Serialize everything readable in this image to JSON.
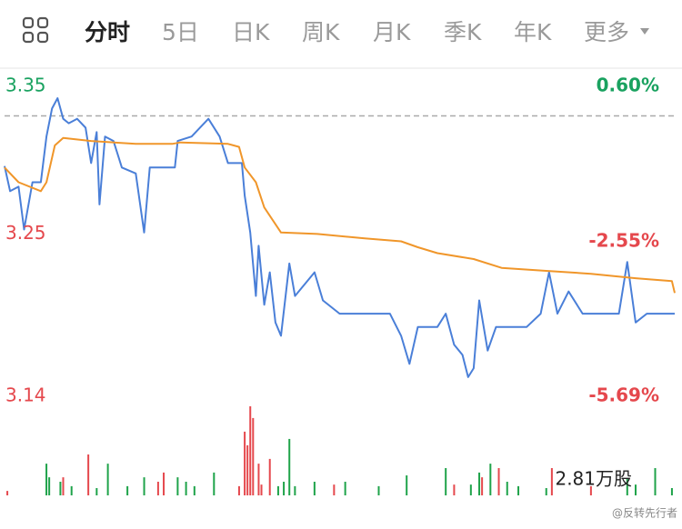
{
  "tabs": [
    "分时",
    "5日",
    "日K",
    "周K",
    "月K",
    "季K",
    "年K",
    "更多"
  ],
  "active_tab": 0,
  "watermark": "@反转先行者",
  "chart_data": [
    {
      "type": "line",
      "xlim": [
        0,
        240
      ],
      "ylim": [
        3.14,
        3.35
      ],
      "yticks": [
        3.14,
        3.25,
        3.35
      ],
      "ytick_colors": [
        "#e5484d",
        "#e5484d",
        "#1aa260"
      ],
      "y2lim": [
        -5.69,
        0.6
      ],
      "y2ticks": [
        {
          "value": -5.69,
          "label": "-5.69%"
        },
        {
          "value": -2.55,
          "label": "-2.55%"
        },
        {
          "value": 0.6,
          "label": "0.60%"
        }
      ],
      "y2tick_colors": [
        "#e5484d",
        "#e5484d",
        "#1aa260"
      ],
      "reference": 3.33,
      "series": [
        {
          "color": "#4a7fd8",
          "x": [
            0,
            2,
            5,
            7,
            10,
            13,
            15,
            17,
            19,
            21,
            23,
            26,
            29,
            31,
            33,
            34,
            36,
            39,
            42,
            47,
            50,
            52,
            57,
            61,
            62,
            67,
            73,
            77,
            80,
            85,
            86,
            88,
            90,
            91,
            93,
            95,
            97,
            99,
            102,
            104,
            111,
            114,
            120,
            127,
            132,
            138,
            142,
            145,
            148,
            155,
            158,
            161,
            164,
            166,
            168,
            170,
            173,
            176,
            181,
            187,
            192,
            195,
            198,
            202,
            207,
            212,
            217,
            220,
            223,
            226,
            230,
            240
          ],
          "values": [
            3.296,
            3.279,
            3.282,
            3.253,
            3.285,
            3.285,
            3.316,
            3.335,
            3.342,
            3.328,
            3.325,
            3.328,
            3.322,
            3.298,
            3.319,
            3.27,
            3.316,
            3.313,
            3.295,
            3.291,
            3.251,
            3.295,
            3.295,
            3.295,
            3.313,
            3.316,
            3.328,
            3.316,
            3.298,
            3.298,
            3.276,
            3.251,
            3.208,
            3.242,
            3.202,
            3.224,
            3.19,
            3.181,
            3.23,
            3.208,
            3.224,
            3.205,
            3.196,
            3.196,
            3.196,
            3.196,
            3.181,
            3.162,
            3.187,
            3.187,
            3.196,
            3.175,
            3.168,
            3.153,
            3.159,
            3.205,
            3.171,
            3.187,
            3.187,
            3.187,
            3.196,
            3.224,
            3.196,
            3.211,
            3.196,
            3.196,
            3.196,
            3.196,
            3.231,
            3.19,
            3.196,
            3.196
          ]
        },
        {
          "color": "#f0962a",
          "x": [
            0,
            5,
            13,
            15,
            18,
            21,
            31,
            47,
            60,
            63,
            80,
            84,
            86,
            90,
            93,
            99,
            112,
            129,
            142,
            148,
            155,
            168,
            178,
            194,
            210,
            226,
            239,
            240
          ],
          "values": [
            3.295,
            3.285,
            3.279,
            3.285,
            3.31,
            3.315,
            3.313,
            3.311,
            3.311,
            3.312,
            3.311,
            3.309,
            3.295,
            3.285,
            3.268,
            3.251,
            3.25,
            3.247,
            3.245,
            3.241,
            3.237,
            3.233,
            3.227,
            3.225,
            3.223,
            3.22,
            3.218,
            3.21
          ]
        }
      ]
    },
    {
      "type": "bar",
      "xlim": [
        0,
        240
      ],
      "ylim": [
        0,
        2.81
      ],
      "yticks": [
        {
          "value": 2.81,
          "label": "2.81万股"
        }
      ],
      "x": [
        1,
        15,
        16,
        20,
        21,
        24,
        30,
        33,
        37,
        44,
        50,
        55,
        57,
        62,
        65,
        68,
        75,
        84,
        86,
        87,
        88,
        89,
        91,
        92,
        95,
        98,
        100,
        102,
        104,
        111,
        118,
        122,
        134,
        144,
        158,
        161,
        167,
        170,
        171,
        174,
        177,
        180,
        184,
        194,
        196,
        210,
        223,
        226,
        233,
        239
      ],
      "values": [
        0.14,
        1.0,
        0.57,
        0.43,
        0.57,
        0.29,
        1.29,
        0.23,
        1.0,
        0.29,
        0.57,
        0.43,
        0.72,
        0.57,
        0.43,
        0.29,
        0.72,
        0.29,
        2.01,
        1.58,
        2.81,
        2.44,
        1.0,
        0.34,
        1.15,
        0.29,
        0.43,
        1.78,
        0.29,
        0.43,
        0.34,
        0.43,
        0.29,
        0.63,
        0.86,
        0.34,
        0.34,
        0.72,
        0.57,
        1.0,
        0.86,
        0.43,
        0.29,
        0.23,
        0.86,
        0.29,
        0.52,
        0.34,
        0.86,
        0.23
      ],
      "colors": [
        "#e5484d",
        "#1fa34a",
        "#1fa34a",
        "#1fa34a",
        "#e5484d",
        "#1fa34a",
        "#e5484d",
        "#1fa34a",
        "#1fa34a",
        "#1fa34a",
        "#1fa34a",
        "#e5484d",
        "#e5484d",
        "#1fa34a",
        "#1fa34a",
        "#1fa34a",
        "#1fa34a",
        "#e5484d",
        "#e5484d",
        "#e5484d",
        "#e5484d",
        "#e5484d",
        "#e5484d",
        "#e5484d",
        "#e5484d",
        "#1fa34a",
        "#1fa34a",
        "#1fa34a",
        "#1fa34a",
        "#1fa34a",
        "#e5484d",
        "#1fa34a",
        "#1fa34a",
        "#1fa34a",
        "#1fa34a",
        "#e5484d",
        "#1fa34a",
        "#1fa34a",
        "#e5484d",
        "#1fa34a",
        "#e5484d",
        "#1fa34a",
        "#1fa34a",
        "#1fa34a",
        "#e5484d",
        "#e5484d",
        "#1fa34a",
        "#1fa34a",
        "#1fa34a",
        "#1fa34a"
      ]
    }
  ]
}
